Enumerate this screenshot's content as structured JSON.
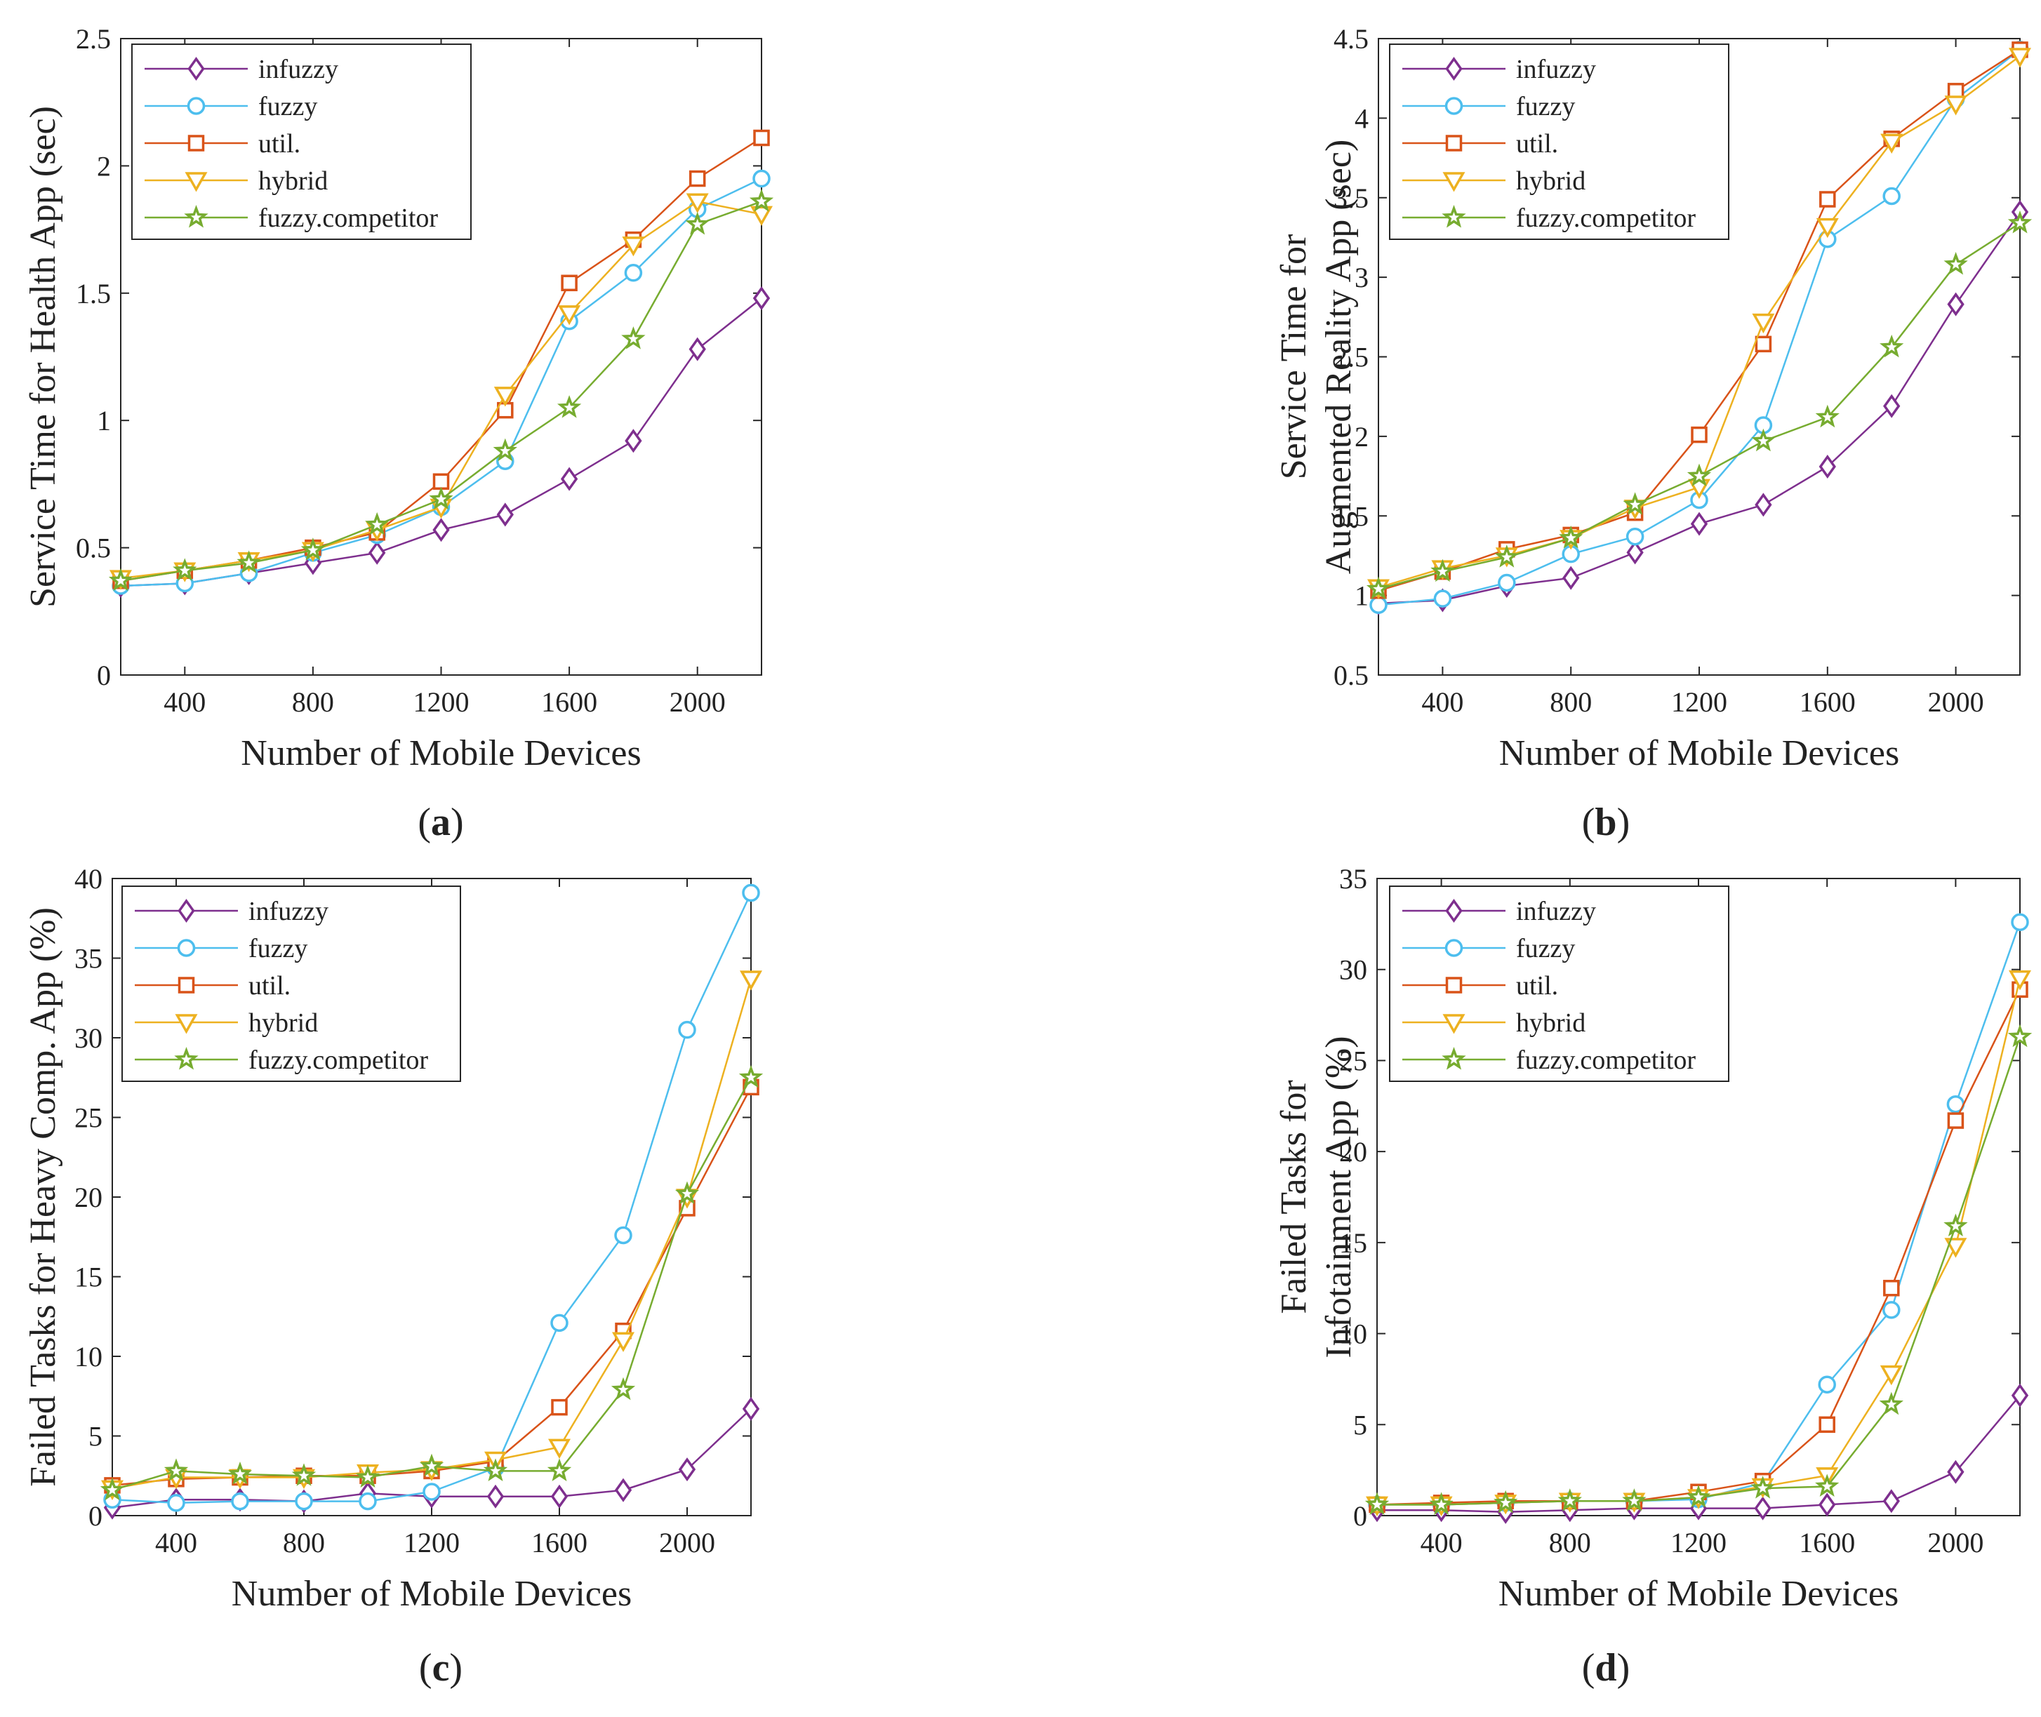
{
  "figure": {
    "panel_labels": [
      {
        "open": "(",
        "letter": "a",
        "close": ")"
      },
      {
        "open": "(",
        "letter": "b",
        "close": ")"
      },
      {
        "open": "(",
        "letter": "c",
        "close": ")"
      },
      {
        "open": "(",
        "letter": "d",
        "close": ")"
      }
    ]
  },
  "series_styles": [
    {
      "name": "infuzzy",
      "color": "#7E2F8E",
      "marker": "diamond"
    },
    {
      "name": "fuzzy",
      "color": "#4DBEEE",
      "marker": "circle"
    },
    {
      "name": "util.",
      "color": "#D95319",
      "marker": "square"
    },
    {
      "name": "hybrid",
      "color": "#EDB120",
      "marker": "triangle-down"
    },
    {
      "name": "fuzzy.competitor",
      "color": "#77AC30",
      "marker": "star"
    }
  ],
  "chart_data": [
    {
      "type": "line",
      "panel": "a",
      "title": "",
      "xlabel": "Number of Mobile Devices",
      "ylabel": [
        "Service Time for Health App (sec)"
      ],
      "xlim": [
        200,
        2200
      ],
      "ylim": [
        0,
        2.5
      ],
      "xticks": [
        400,
        800,
        1200,
        1600,
        2000
      ],
      "xtick_labels": [
        "400",
        "800",
        "1200",
        "1600",
        "2000"
      ],
      "yticks": [
        0,
        0.5,
        1,
        1.5,
        2,
        2.5
      ],
      "ytick_labels": [
        "0",
        "0.5",
        "1",
        "1.5",
        "2",
        "2.5"
      ],
      "x": [
        200,
        400,
        600,
        800,
        1000,
        1200,
        1400,
        1600,
        1800,
        2000,
        2200
      ],
      "legend": "top-left",
      "series": [
        {
          "name": "infuzzy",
          "values": [
            0.35,
            0.36,
            0.4,
            0.44,
            0.48,
            0.57,
            0.63,
            0.77,
            0.92,
            1.28,
            1.48
          ]
        },
        {
          "name": "fuzzy",
          "values": [
            0.35,
            0.36,
            0.4,
            0.48,
            0.55,
            0.66,
            0.84,
            1.39,
            1.58,
            1.83,
            1.95
          ]
        },
        {
          "name": "util.",
          "values": [
            0.37,
            0.41,
            0.45,
            0.5,
            0.56,
            0.76,
            1.04,
            1.54,
            1.71,
            1.95,
            2.11
          ]
        },
        {
          "name": "hybrid",
          "values": [
            0.38,
            0.41,
            0.45,
            0.49,
            0.57,
            0.66,
            1.1,
            1.42,
            1.69,
            1.86,
            1.81
          ]
        },
        {
          "name": "fuzzy.competitor",
          "values": [
            0.37,
            0.41,
            0.44,
            0.49,
            0.59,
            0.69,
            0.88,
            1.05,
            1.32,
            1.77,
            1.86
          ]
        }
      ]
    },
    {
      "type": "line",
      "panel": "b",
      "title": "",
      "xlabel": "Number of Mobile Devices",
      "ylabel": [
        "Service Time for",
        "Augmented Reality App (sec)"
      ],
      "xlim": [
        200,
        2200
      ],
      "ylim": [
        0.5,
        4.5
      ],
      "xticks": [
        400,
        800,
        1200,
        1600,
        2000
      ],
      "xtick_labels": [
        "400",
        "800",
        "1200",
        "1600",
        "2000"
      ],
      "yticks": [
        0.5,
        1,
        1.5,
        2,
        2.5,
        3,
        3.5,
        4,
        4.5
      ],
      "ytick_labels": [
        "0.5",
        "1",
        "1.5",
        "2",
        "2.5",
        "3",
        "3.5",
        "4",
        "4.5"
      ],
      "x": [
        200,
        400,
        600,
        800,
        1000,
        1200,
        1400,
        1600,
        1800,
        2000,
        2200
      ],
      "legend": "top-left",
      "series": [
        {
          "name": "infuzzy",
          "values": [
            0.95,
            0.97,
            1.06,
            1.11,
            1.27,
            1.45,
            1.57,
            1.81,
            2.19,
            2.83,
            3.41
          ]
        },
        {
          "name": "fuzzy",
          "values": [
            0.94,
            0.98,
            1.08,
            1.26,
            1.37,
            1.6,
            2.07,
            3.24,
            3.51,
            4.12,
            4.43
          ]
        },
        {
          "name": "util.",
          "values": [
            1.03,
            1.15,
            1.29,
            1.38,
            1.52,
            2.01,
            2.58,
            3.49,
            3.87,
            4.17,
            4.43
          ]
        },
        {
          "name": "hybrid",
          "values": [
            1.05,
            1.17,
            1.25,
            1.36,
            1.55,
            1.68,
            2.72,
            3.32,
            3.85,
            4.09,
            4.39
          ]
        },
        {
          "name": "fuzzy.competitor",
          "values": [
            1.04,
            1.15,
            1.24,
            1.36,
            1.57,
            1.75,
            1.97,
            2.12,
            2.56,
            3.08,
            3.34
          ]
        }
      ]
    },
    {
      "type": "line",
      "panel": "c",
      "title": "",
      "xlabel": "Number of Mobile Devices",
      "ylabel": [
        "Failed Tasks for Heavy Comp. App (%)"
      ],
      "xlim": [
        200,
        2200
      ],
      "ylim": [
        0,
        40
      ],
      "xticks": [
        400,
        800,
        1200,
        1600,
        2000
      ],
      "xtick_labels": [
        "400",
        "800",
        "1200",
        "1600",
        "2000"
      ],
      "yticks": [
        0,
        5,
        10,
        15,
        20,
        25,
        30,
        35,
        40
      ],
      "ytick_labels": [
        "0",
        "5",
        "10",
        "15",
        "20",
        "25",
        "30",
        "35",
        "40"
      ],
      "x": [
        200,
        400,
        600,
        800,
        1000,
        1200,
        1400,
        1600,
        1800,
        2000,
        2200
      ],
      "legend": "top-left",
      "series": [
        {
          "name": "infuzzy",
          "values": [
            0.5,
            1.0,
            1.0,
            0.9,
            1.4,
            1.2,
            1.2,
            1.2,
            1.6,
            2.9,
            6.7
          ]
        },
        {
          "name": "fuzzy",
          "values": [
            1.0,
            0.8,
            0.9,
            0.9,
            0.9,
            1.5,
            3.0,
            12.1,
            17.6,
            30.5,
            39.1
          ]
        },
        {
          "name": "util.",
          "values": [
            1.9,
            2.3,
            2.4,
            2.5,
            2.5,
            2.8,
            3.4,
            6.8,
            11.6,
            19.3,
            26.9
          ]
        },
        {
          "name": "hybrid",
          "values": [
            1.7,
            2.4,
            2.4,
            2.4,
            2.7,
            2.9,
            3.5,
            4.3,
            11.0,
            20.0,
            33.7
          ]
        },
        {
          "name": "fuzzy.competitor",
          "values": [
            1.6,
            2.8,
            2.6,
            2.5,
            2.4,
            3.1,
            2.8,
            2.8,
            7.9,
            20.2,
            27.5
          ]
        }
      ]
    },
    {
      "type": "line",
      "panel": "d",
      "title": "",
      "xlabel": "Number of Mobile Devices",
      "ylabel": [
        "Failed Tasks for",
        "Infotainment App (%)"
      ],
      "xlim": [
        200,
        2200
      ],
      "ylim": [
        0,
        35
      ],
      "xticks": [
        400,
        800,
        1200,
        1600,
        2000
      ],
      "xtick_labels": [
        "400",
        "800",
        "1200",
        "1600",
        "2000"
      ],
      "yticks": [
        0,
        5,
        10,
        15,
        20,
        25,
        30,
        35
      ],
      "ytick_labels": [
        "0",
        "5",
        "10",
        "15",
        "20",
        "25",
        "30",
        "35"
      ],
      "x": [
        200,
        400,
        600,
        800,
        1000,
        1200,
        1400,
        1600,
        1800,
        2000,
        2200
      ],
      "legend": "top-left",
      "series": [
        {
          "name": "infuzzy",
          "values": [
            0.3,
            0.3,
            0.2,
            0.3,
            0.4,
            0.4,
            0.4,
            0.6,
            0.8,
            2.4,
            6.6
          ]
        },
        {
          "name": "fuzzy",
          "values": [
            0.6,
            0.6,
            0.7,
            0.8,
            0.8,
            0.9,
            1.8,
            7.2,
            11.3,
            22.6,
            32.6
          ]
        },
        {
          "name": "util.",
          "values": [
            0.6,
            0.7,
            0.8,
            0.8,
            0.8,
            1.3,
            1.9,
            5.0,
            12.5,
            21.7,
            28.9
          ]
        },
        {
          "name": "hybrid",
          "values": [
            0.6,
            0.6,
            0.7,
            0.8,
            0.8,
            1.0,
            1.6,
            2.2,
            7.8,
            14.8,
            29.5
          ]
        },
        {
          "name": "fuzzy.competitor",
          "values": [
            0.6,
            0.6,
            0.7,
            0.8,
            0.8,
            1.0,
            1.5,
            1.6,
            6.1,
            15.9,
            26.3
          ]
        }
      ]
    }
  ]
}
